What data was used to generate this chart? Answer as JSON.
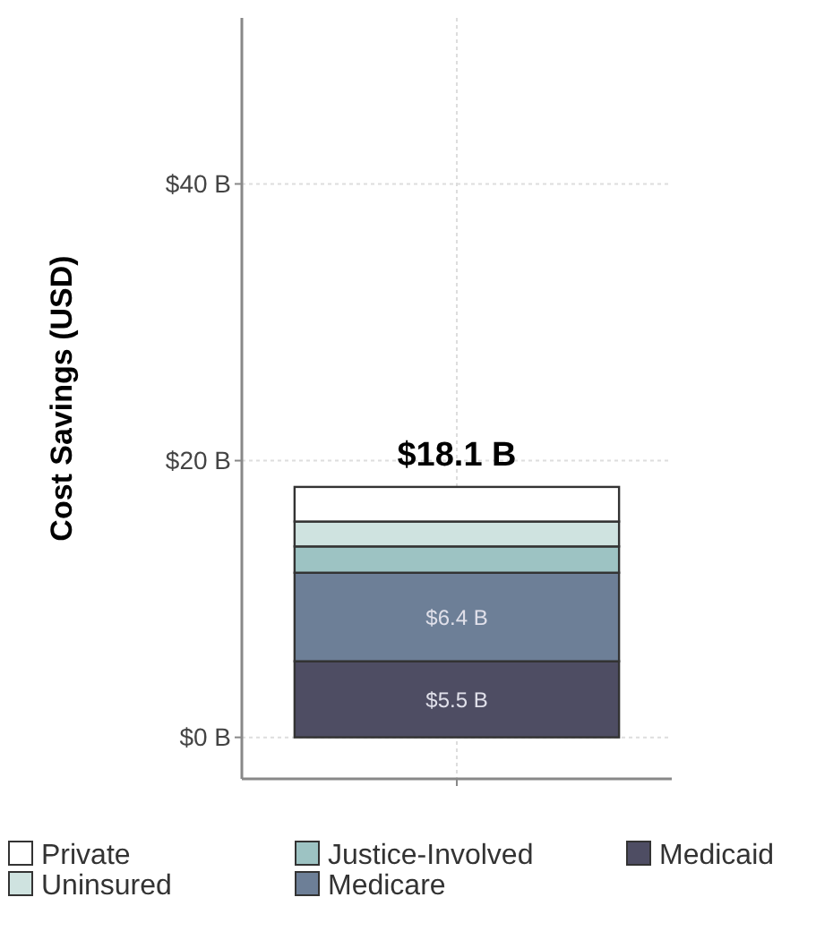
{
  "chart_data": {
    "type": "bar",
    "ylabel": "Cost Savings (USD)",
    "categories": [
      null
    ],
    "stacked": true,
    "series": [
      {
        "name": "Medicaid",
        "color": "#4e4d63",
        "values": [
          5.5
        ],
        "value_labels": [
          "$5.5 B"
        ]
      },
      {
        "name": "Medicare",
        "color": "#6d7f97",
        "values": [
          6.4
        ],
        "value_labels": [
          "$6.4 B"
        ]
      },
      {
        "name": "Justice-Involved",
        "color": "#9dc3c3",
        "values": [
          1.9
        ]
      },
      {
        "name": "Uninsured",
        "color": "#cfe3e0",
        "values": [
          1.8
        ]
      },
      {
        "name": "Private",
        "color": "#ffffff",
        "values": [
          2.5
        ]
      }
    ],
    "totals": [
      "$18.1 B"
    ],
    "ylim": [
      -3,
      52
    ],
    "yticks": [
      {
        "value": 0,
        "label": "$0 B"
      },
      {
        "value": 20,
        "label": "$20 B"
      },
      {
        "value": 40,
        "label": "$40 B"
      }
    ],
    "grid": true,
    "legend": "bottom"
  }
}
